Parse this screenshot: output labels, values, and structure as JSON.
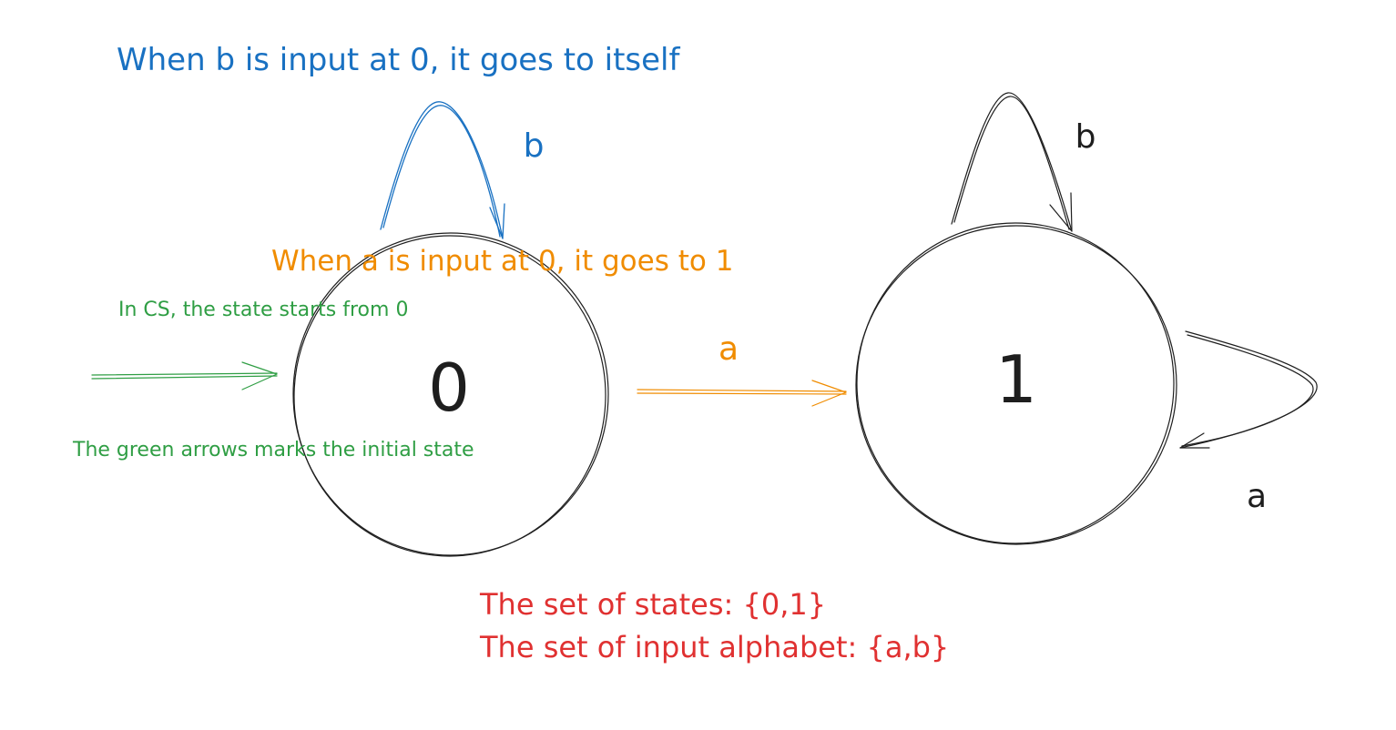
{
  "colors": {
    "blue": "#1971c2",
    "orange": "#f08c00",
    "green": "#2f9e44",
    "red": "#e03131",
    "black": "#1e1e1e"
  },
  "annotations": {
    "self_loop_b_at_0": "When b is input at 0, it goes to itself",
    "transition_a_0_to_1": "When a is input at 0, it goes to 1",
    "cs_start_note": "In CS, the state starts from 0",
    "initial_state_note": "The green arrows marks the initial state"
  },
  "states": [
    {
      "label": "0"
    },
    {
      "label": "1"
    }
  ],
  "transitions": {
    "loop_0_b": "b",
    "edge_0_1_a": "a",
    "loop_1_b": "b",
    "loop_1_a": "a"
  },
  "summary": {
    "states_line": "The set of states: {0,1}",
    "alphabet_line": "The set of input alphabet: {a,b}"
  }
}
